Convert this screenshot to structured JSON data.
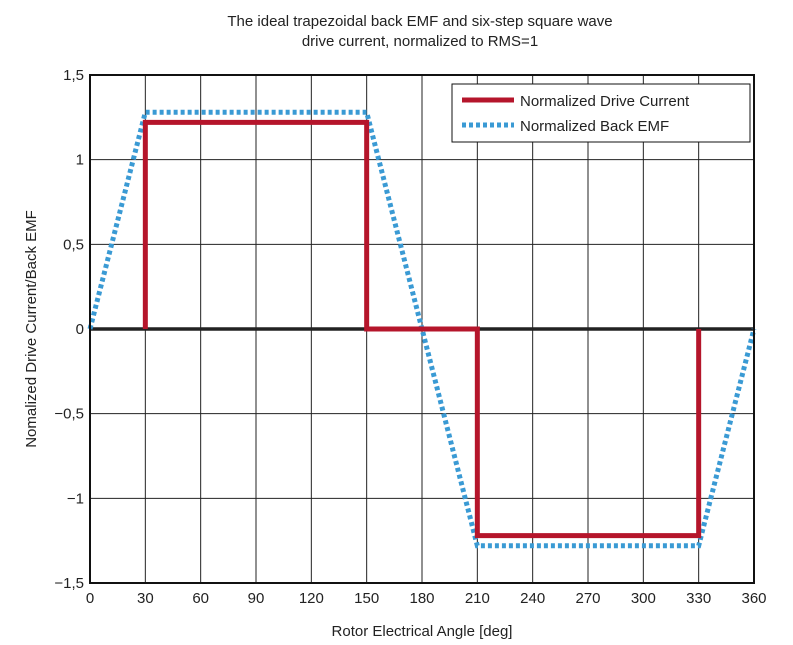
{
  "chart_data": {
    "type": "line",
    "title": "The ideal trapezoidal back EMF and six-step square wave",
    "subtitle": "drive current, normalized to RMS=1",
    "xlabel": "Rotor Electrical Angle [deg]",
    "ylabel": "Nomalized Drive Current/Back EMF",
    "xlim": [
      0,
      360
    ],
    "ylim": [
      -1.5,
      1.5
    ],
    "grid": true,
    "legend_placement": "top-right",
    "xticks": [
      0,
      30,
      60,
      90,
      120,
      150,
      180,
      210,
      240,
      270,
      300,
      330,
      360
    ],
    "xtick_labels": [
      "0",
      "30",
      "60",
      "90",
      "120",
      "150",
      "180",
      "210",
      "240",
      "270",
      "300",
      "330",
      "360"
    ],
    "yticks": [
      1.5,
      1,
      0.5,
      0,
      -0.5,
      -1,
      -1.5
    ],
    "ytick_labels": [
      "1,5",
      "1",
      "0,5",
      "0",
      "−0,5",
      "−1",
      "−1,5"
    ],
    "series": [
      {
        "name": "Normalized Drive Current",
        "color": "#b5152b",
        "style": "solid",
        "x": [
          30,
          30,
          150,
          150,
          210,
          210,
          330,
          330
        ],
        "y": [
          0,
          1.22,
          1.22,
          0,
          0,
          -1.22,
          -1.22,
          0
        ]
      },
      {
        "name": "Normalized Back EMF",
        "color": "#3a9ad4",
        "style": "dotted",
        "x": [
          0,
          30,
          150,
          210,
          330,
          360
        ],
        "y": [
          0,
          1.28,
          1.28,
          -1.28,
          -1.28,
          0
        ]
      }
    ]
  }
}
